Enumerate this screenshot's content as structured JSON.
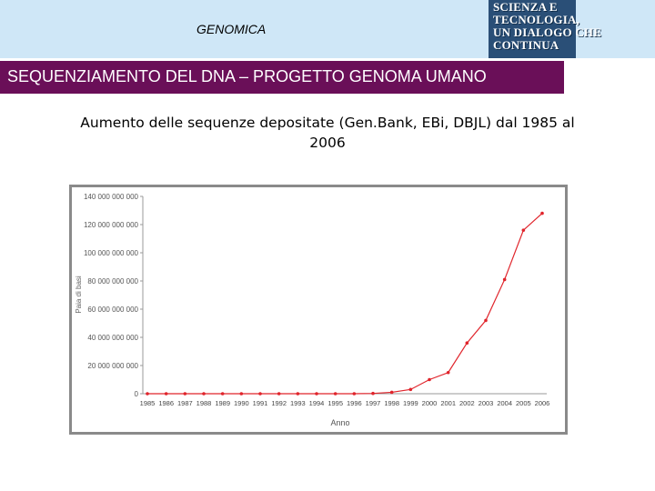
{
  "header": {
    "title": "GENOMICA",
    "logo_lines": [
      "SCIENZA E",
      "TECNOLOGIA,",
      "UN DIALOGO CHE",
      "CONTINUA"
    ]
  },
  "banner": {
    "text": "SEQUENZIAMENTO DEL DNA – PROGETTO GENOMA UMANO"
  },
  "colors": {
    "banner": "#6a0f58",
    "topband": "#cfe7f7",
    "logo": "#2a4f77",
    "series": "#e0242b"
  },
  "chart_data": {
    "type": "line",
    "title": "Aumento delle sequenze depositate (Gen.Bank, EBi, DBJL) dal 1985 al 2006",
    "xlabel": "Anno",
    "ylabel": "Paia di basi",
    "categories": [
      "1985",
      "1986",
      "1987",
      "1988",
      "1989",
      "1990",
      "1991",
      "1992",
      "1993",
      "1994",
      "1995",
      "1996",
      "1997",
      "1998",
      "1999",
      "2000",
      "2001",
      "2002",
      "2003",
      "2004",
      "2005",
      "2006"
    ],
    "y_ticks": [
      "0",
      "20 000 000 000",
      "40 000 000 000",
      "60 000 000 000",
      "80 000 000 000",
      "100 000 000 000",
      "120 000 000 000",
      "140 000 000 000"
    ],
    "ylim": [
      0,
      140000000000
    ],
    "grid": false,
    "legend": "none",
    "series": [
      {
        "values": [
          0,
          0,
          0,
          0,
          0,
          0,
          0,
          0,
          0,
          0,
          0,
          0,
          200000000,
          1000000000,
          3000000000,
          10000000000,
          15000000000,
          36000000000,
          52000000000,
          81000000000,
          116000000000,
          128000000000
        ]
      }
    ]
  }
}
